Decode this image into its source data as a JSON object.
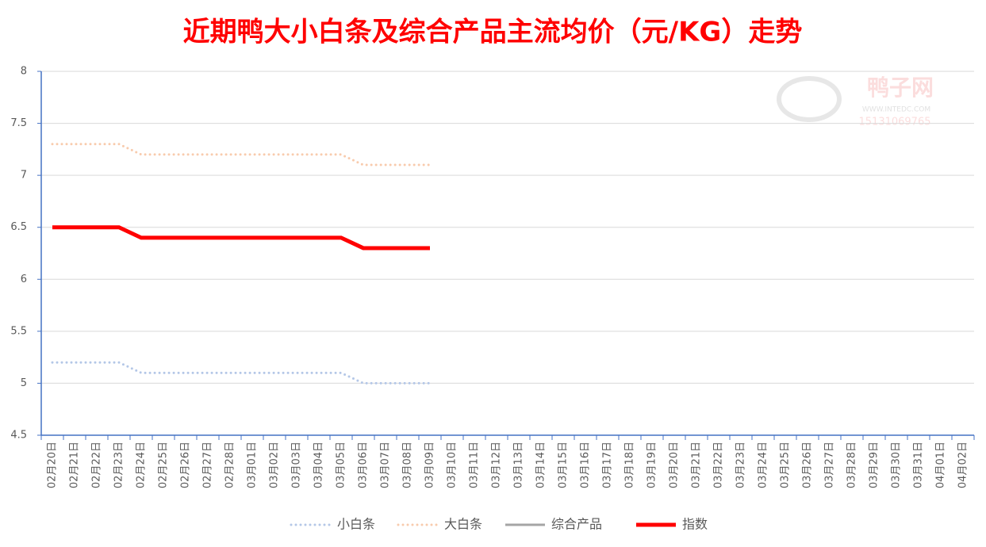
{
  "chart_data": {
    "type": "line",
    "title": "近期鸭大小白条及综合产品主流均价（元/KG）走势",
    "watermark": [
      "鸭子网",
      "WWW.INTEDC.COM",
      "15131069765"
    ],
    "categories": [
      "02月20日",
      "02月21日",
      "02月22日",
      "02月23日",
      "02月24日",
      "02月25日",
      "02月26日",
      "02月27日",
      "02月28日",
      "03月01日",
      "03月02日",
      "03月03日",
      "03月04日",
      "03月05日",
      "03月06日",
      "03月07日",
      "03月08日",
      "03月09日",
      "03月10日",
      "03月11日",
      "03月12日",
      "03月13日",
      "03月14日",
      "03月15日",
      "03月16日",
      "03月17日",
      "03月18日",
      "03月19日",
      "03月20日",
      "03月21日",
      "03月22日",
      "03月23日",
      "03月24日",
      "03月25日",
      "03月26日",
      "03月27日",
      "03月28日",
      "03月29日",
      "03月30日",
      "03月31日",
      "04月01日",
      "04月02日"
    ],
    "series": [
      {
        "name": "小白条",
        "color": "#b4c7e7",
        "style": "dotted",
        "values": [
          5.2,
          5.2,
          5.2,
          5.2,
          5.1,
          5.1,
          5.1,
          5.1,
          5.1,
          5.1,
          5.1,
          5.1,
          5.1,
          5.1,
          5.0,
          5.0,
          5.0,
          5.0,
          null,
          null,
          null,
          null,
          null,
          null,
          null,
          null,
          null,
          null,
          null,
          null,
          null,
          null,
          null,
          null,
          null,
          null,
          null,
          null,
          null,
          null,
          null,
          null
        ]
      },
      {
        "name": "大白条",
        "color": "#f8cbad",
        "style": "dotted",
        "values": [
          7.3,
          7.3,
          7.3,
          7.3,
          7.2,
          7.2,
          7.2,
          7.2,
          7.2,
          7.2,
          7.2,
          7.2,
          7.2,
          7.2,
          7.1,
          7.1,
          7.1,
          7.1,
          null,
          null,
          null,
          null,
          null,
          null,
          null,
          null,
          null,
          null,
          null,
          null,
          null,
          null,
          null,
          null,
          null,
          null,
          null,
          null,
          null,
          null,
          null,
          null
        ]
      },
      {
        "name": "综合产品",
        "color": "#a5a5a5",
        "style": "solid",
        "values": [
          null,
          null,
          null,
          null,
          null,
          null,
          null,
          null,
          null,
          null,
          null,
          null,
          null,
          null,
          null,
          null,
          null,
          null,
          null,
          null,
          null,
          null,
          null,
          null,
          null,
          null,
          null,
          null,
          null,
          null,
          null,
          null,
          null,
          null,
          null,
          null,
          null,
          null,
          null,
          null,
          null,
          null
        ]
      },
      {
        "name": "指数",
        "color": "#ff0000",
        "style": "thick",
        "values": [
          6.5,
          6.5,
          6.5,
          6.5,
          6.4,
          6.4,
          6.4,
          6.4,
          6.4,
          6.4,
          6.4,
          6.4,
          6.4,
          6.4,
          6.3,
          6.3,
          6.3,
          6.3,
          null,
          null,
          null,
          null,
          null,
          null,
          null,
          null,
          null,
          null,
          null,
          null,
          null,
          null,
          null,
          null,
          null,
          null,
          null,
          null,
          null,
          null,
          null,
          null
        ]
      }
    ],
    "ylim": [
      4.5,
      8
    ],
    "yticks": [
      4.5,
      5,
      5.5,
      6,
      6.5,
      7,
      7.5,
      8
    ],
    "grid": true
  }
}
